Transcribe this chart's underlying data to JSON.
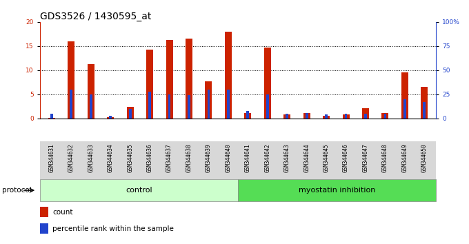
{
  "title": "GDS3526 / 1430595_at",
  "samples": [
    "GSM344631",
    "GSM344632",
    "GSM344633",
    "GSM344634",
    "GSM344635",
    "GSM344636",
    "GSM344637",
    "GSM344638",
    "GSM344639",
    "GSM344640",
    "GSM344641",
    "GSM344642",
    "GSM344643",
    "GSM344644",
    "GSM344645",
    "GSM344646",
    "GSM344647",
    "GSM344648",
    "GSM344649",
    "GSM344650"
  ],
  "count": [
    0.2,
    16.0,
    11.3,
    0.3,
    2.4,
    14.3,
    16.3,
    16.5,
    7.7,
    18.0,
    1.2,
    14.7,
    0.9,
    1.1,
    0.5,
    0.9,
    2.1,
    1.1,
    9.5,
    6.5
  ],
  "percentile": [
    5,
    30,
    25,
    3,
    10,
    28,
    25,
    24,
    30,
    30,
    8,
    25,
    5,
    6,
    4,
    5,
    5,
    5,
    20,
    17
  ],
  "count_color": "#cc2200",
  "percentile_color": "#2244cc",
  "ylim_left": [
    0,
    20
  ],
  "ylim_right": [
    0,
    100
  ],
  "yticks_left": [
    0,
    5,
    10,
    15,
    20
  ],
  "yticks_right": [
    0,
    25,
    50,
    75,
    100
  ],
  "ytick_labels_right": [
    "0",
    "25",
    "50",
    "75",
    "100%"
  ],
  "grid_values": [
    5,
    10,
    15
  ],
  "control_count": 10,
  "control_label": "control",
  "treatment_label": "myostatin inhibition",
  "protocol_label": "protocol",
  "control_color": "#ccffcc",
  "treatment_color": "#55dd55",
  "legend_count": "count",
  "legend_percentile": "percentile rank within the sample",
  "title_fontsize": 10,
  "tick_fontsize": 6.5
}
